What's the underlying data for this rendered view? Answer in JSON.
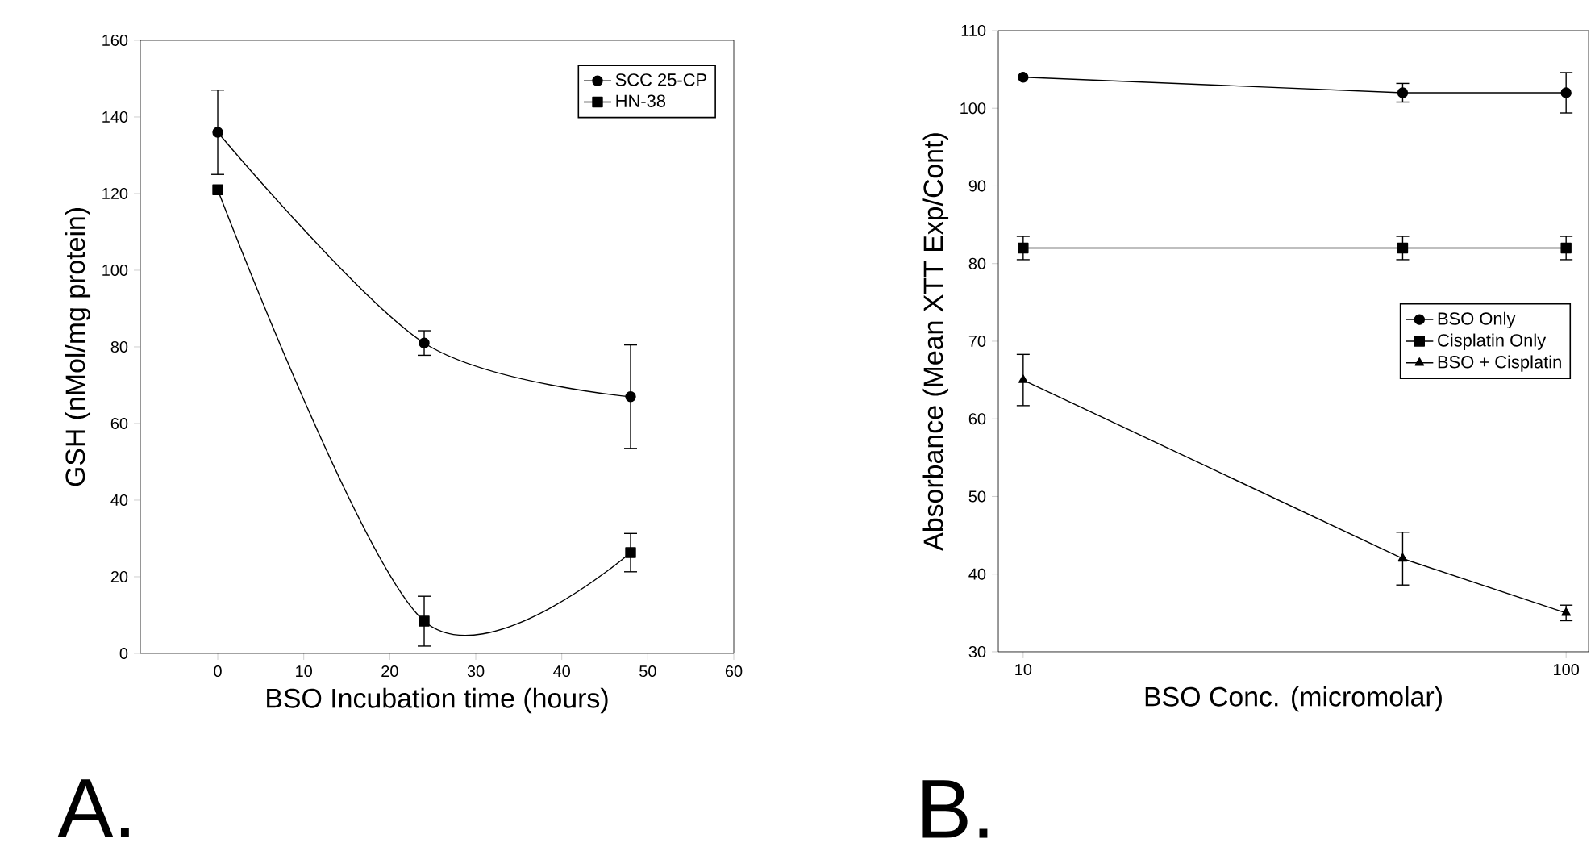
{
  "chart_data": [
    {
      "type": "line",
      "xlabel": "BSO Incubation time (hours)",
      "ylabel": "GSH (nMol/mg protein)",
      "annotations": [
        "A."
      ],
      "x": [
        0,
        24,
        48
      ],
      "xlim": [
        -9,
        60
      ],
      "xticks": [
        0,
        10,
        20,
        30,
        40,
        50,
        60
      ],
      "ylim": [
        0,
        160
      ],
      "yticks": [
        0,
        20,
        40,
        60,
        80,
        100,
        120,
        140,
        160
      ],
      "legend": "top right",
      "grid": false,
      "series": [
        {
          "name": "SCC 25-CP",
          "color": "#000000",
          "marker": "circle",
          "values": [
            136,
            81,
            67
          ],
          "errors": [
            11,
            3.2,
            13.5
          ]
        },
        {
          "name": "HN-38",
          "color": "#000000",
          "marker": "square",
          "values": [
            121,
            8.4,
            26.3
          ],
          "errors": [
            null,
            6.5,
            5
          ]
        }
      ]
    },
    {
      "type": "line",
      "xlabel": "BSO Conc. (micromolar)",
      "ylabel": "Absorbance (Mean XTT Exp/Cont)",
      "annotations": [
        "B."
      ],
      "x": [
        10,
        50,
        100
      ],
      "log": "x",
      "xlim": [
        9,
        110
      ],
      "xticks": [
        10,
        100
      ],
      "ylim": [
        30,
        110
      ],
      "yticks": [
        30,
        40,
        50,
        60,
        70,
        80,
        90,
        100,
        110
      ],
      "legend": "right",
      "grid": false,
      "series": [
        {
          "name": "BSO Only",
          "color": "#000000",
          "marker": "circle",
          "values": [
            104,
            102,
            102
          ],
          "errors": [
            null,
            1.2,
            2.6
          ]
        },
        {
          "name": "Cisplatin Only",
          "color": "#000000",
          "marker": "square",
          "values": [
            82,
            82,
            82
          ],
          "errors": [
            1.5,
            1.5,
            1.5
          ]
        },
        {
          "name": "BSO + Cisplatin",
          "color": "#000000",
          "marker": "triangle",
          "values": [
            65,
            42,
            35
          ],
          "errors": [
            3.3,
            3.4,
            1
          ]
        }
      ]
    }
  ]
}
